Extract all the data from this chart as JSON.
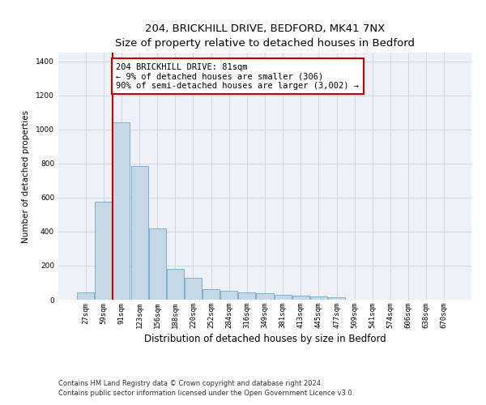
{
  "title_line1": "204, BRICKHILL DRIVE, BEDFORD, MK41 7NX",
  "title_line2": "Size of property relative to detached houses in Bedford",
  "xlabel": "Distribution of detached houses by size in Bedford",
  "ylabel": "Number of detached properties",
  "bar_labels": [
    "27sqm",
    "59sqm",
    "91sqm",
    "123sqm",
    "156sqm",
    "188sqm",
    "220sqm",
    "252sqm",
    "284sqm",
    "316sqm",
    "349sqm",
    "381sqm",
    "413sqm",
    "445sqm",
    "477sqm",
    "509sqm",
    "541sqm",
    "574sqm",
    "606sqm",
    "638sqm",
    "670sqm"
  ],
  "bar_values": [
    45,
    575,
    1040,
    785,
    420,
    180,
    130,
    60,
    50,
    45,
    40,
    28,
    25,
    20,
    13,
    0,
    0,
    0,
    0,
    0,
    0
  ],
  "bar_color": "#c5d8e8",
  "bar_edgecolor": "#7bafd4",
  "ylim": [
    0,
    1450
  ],
  "yticks": [
    0,
    200,
    400,
    600,
    800,
    1000,
    1200,
    1400
  ],
  "red_line_color": "#cc0000",
  "annotation_text": "204 BRICKHILL DRIVE: 81sqm\n← 9% of detached houses are smaller (306)\n90% of semi-detached houses are larger (3,002) →",
  "annotation_box_edgecolor": "#cc0000",
  "annotation_box_facecolor": "#ffffff",
  "grid_color": "#d0d8e8",
  "background_color": "#eef2f8",
  "footnote1": "Contains HM Land Registry data © Crown copyright and database right 2024.",
  "footnote2": "Contains public sector information licensed under the Open Government Licence v3.0.",
  "title_fontsize": 9.5,
  "subtitle_fontsize": 8.5,
  "xlabel_fontsize": 8.5,
  "ylabel_fontsize": 7.5,
  "tick_fontsize": 6.5,
  "annotation_fontsize": 7.5,
  "footnote_fontsize": 6.0,
  "red_line_x": 1.5
}
